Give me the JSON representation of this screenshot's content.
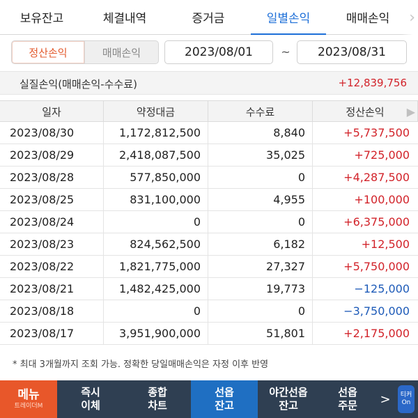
{
  "tabs": [
    {
      "label": "보유잔고",
      "active": false
    },
    {
      "label": "체결내역",
      "active": false
    },
    {
      "label": "증거금",
      "active": false
    },
    {
      "label": "일별손익",
      "active": true
    },
    {
      "label": "매매손익",
      "active": false
    }
  ],
  "filter": {
    "seg_active": "정산손익",
    "seg_inactive": "매매손익",
    "date_from": "2023/08/01",
    "date_to": "2023/08/31",
    "separator": "~"
  },
  "summary": {
    "label": "실질손익(매매손익-수수료)",
    "value": "+12,839,756"
  },
  "table": {
    "headers": [
      "일자",
      "약정대금",
      "수수료",
      "정산손익"
    ],
    "rows": [
      {
        "date": "2023/08/30",
        "amount": "1,172,812,500",
        "fee": "8,840",
        "pnl": "+5,737,500",
        "sign": "pos"
      },
      {
        "date": "2023/08/29",
        "amount": "2,418,087,500",
        "fee": "35,025",
        "pnl": "+725,000",
        "sign": "pos"
      },
      {
        "date": "2023/08/28",
        "amount": "577,850,000",
        "fee": "0",
        "pnl": "+4,287,500",
        "sign": "pos"
      },
      {
        "date": "2023/08/25",
        "amount": "831,100,000",
        "fee": "4,955",
        "pnl": "+100,000",
        "sign": "pos"
      },
      {
        "date": "2023/08/24",
        "amount": "0",
        "fee": "0",
        "pnl": "+6,375,000",
        "sign": "pos"
      },
      {
        "date": "2023/08/23",
        "amount": "824,562,500",
        "fee": "6,182",
        "pnl": "+12,500",
        "sign": "pos"
      },
      {
        "date": "2023/08/22",
        "amount": "1,821,775,000",
        "fee": "27,327",
        "pnl": "+5,750,000",
        "sign": "pos"
      },
      {
        "date": "2023/08/21",
        "amount": "1,482,425,000",
        "fee": "19,773",
        "pnl": "−125,000",
        "sign": "neg"
      },
      {
        "date": "2023/08/18",
        "amount": "0",
        "fee": "0",
        "pnl": "−3,750,000",
        "sign": "neg"
      },
      {
        "date": "2023/08/17",
        "amount": "3,951,900,000",
        "fee": "51,801",
        "pnl": "+2,175,000",
        "sign": "pos"
      }
    ]
  },
  "note": "* 최대 3개월까지 조회 가능. 정확한 당일매매손익은 자정 이후 반영",
  "bottom_bar": {
    "menu_label": "메뉴",
    "menu_sub": "트레이더M",
    "items": [
      {
        "line1": "즉시",
        "line2": "이체",
        "active": false
      },
      {
        "line1": "종합",
        "line2": "차트",
        "active": false
      },
      {
        "line1": "선옵",
        "line2": "잔고",
        "active": true
      },
      {
        "line1": "야간선옵",
        "line2": "잔고",
        "active": false
      },
      {
        "line1": "선옵",
        "line2": "주문",
        "active": false
      }
    ],
    "on_line1": "티커",
    "on_line2": "On"
  },
  "colors": {
    "accent_blue": "#1d6fd8",
    "positive_red": "#d2232a",
    "negative_blue": "#1e5bb8",
    "menu_orange": "#e8572a",
    "bottom_bar_bg": "#2f3f52"
  }
}
